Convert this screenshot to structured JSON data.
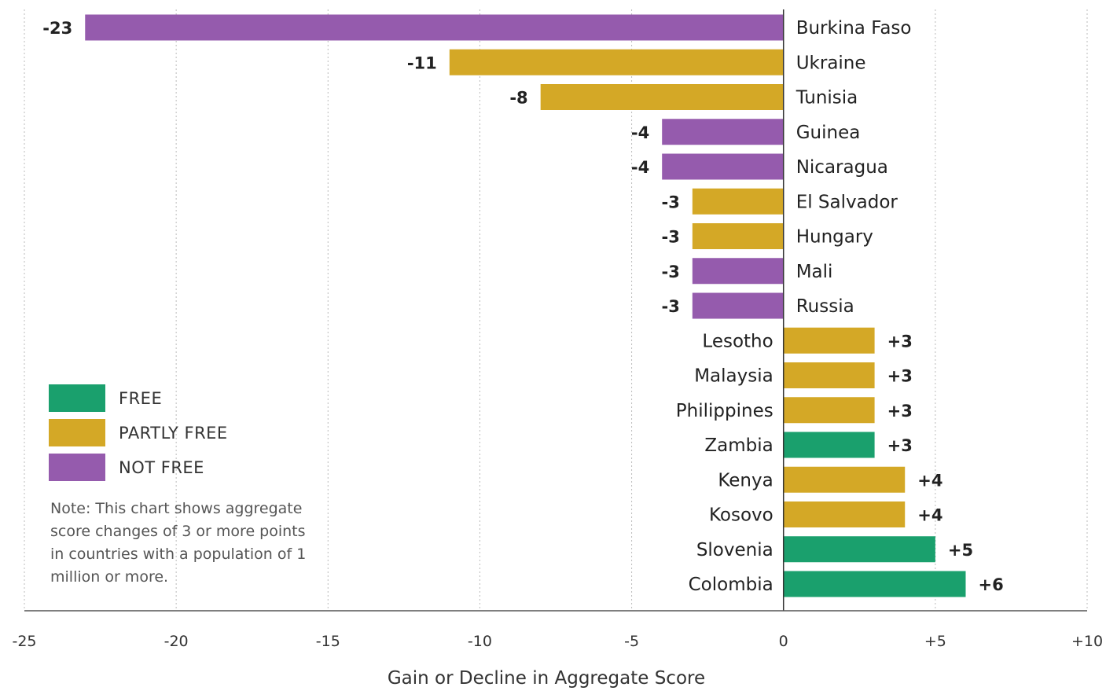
{
  "chart_data": {
    "type": "bar",
    "orientation": "horizontal",
    "categories": [
      "Burkina Faso",
      "Ukraine",
      "Tunisia",
      "Guinea",
      "Nicaragua",
      "El Salvador",
      "Hungary",
      "Mali",
      "Russia",
      "Lesotho",
      "Malaysia",
      "Philippines",
      "Zambia",
      "Kenya",
      "Kosovo",
      "Slovenia",
      "Colombia"
    ],
    "values": [
      -23,
      -11,
      -8,
      -4,
      -4,
      -3,
      -3,
      -3,
      -3,
      3,
      3,
      3,
      3,
      4,
      4,
      5,
      6
    ],
    "value_labels": [
      "-23",
      "-11",
      "-8",
      "-4",
      "-4",
      "-3",
      "-3",
      "-3",
      "-3",
      "+3",
      "+3",
      "+3",
      "+3",
      "+4",
      "+4",
      "+5",
      "+6"
    ],
    "status": [
      "NOT FREE",
      "PARTLY FREE",
      "PARTLY FREE",
      "NOT FREE",
      "NOT FREE",
      "PARTLY FREE",
      "PARTLY FREE",
      "NOT FREE",
      "NOT FREE",
      "PARTLY FREE",
      "PARTLY FREE",
      "PARTLY FREE",
      "FREE",
      "PARTLY FREE",
      "PARTLY FREE",
      "FREE",
      "FREE"
    ],
    "xlim": [
      -25,
      10
    ],
    "xticks": [
      -25,
      -20,
      -15,
      -10,
      -5,
      0,
      5,
      10
    ],
    "xtick_labels": [
      "-25",
      "-20",
      "-15",
      "-10",
      "-5",
      "0",
      "+5",
      "+10"
    ],
    "xlabel": "Gain or Decline in Aggregate Score",
    "grid": true,
    "legend_placement": "bottom-left",
    "colors": {
      "FREE": "#1aa06d",
      "PARTLY FREE": "#d4a826",
      "NOT FREE": "#955bad"
    }
  },
  "legend": {
    "items": [
      {
        "label": "FREE",
        "color": "#1aa06d"
      },
      {
        "label": "PARTLY FREE",
        "color": "#d4a826"
      },
      {
        "label": "NOT FREE",
        "color": "#955bad"
      }
    ]
  },
  "note": "Note: This chart shows aggregate score changes of 3 or more points in countries with a population of 1 million or more."
}
